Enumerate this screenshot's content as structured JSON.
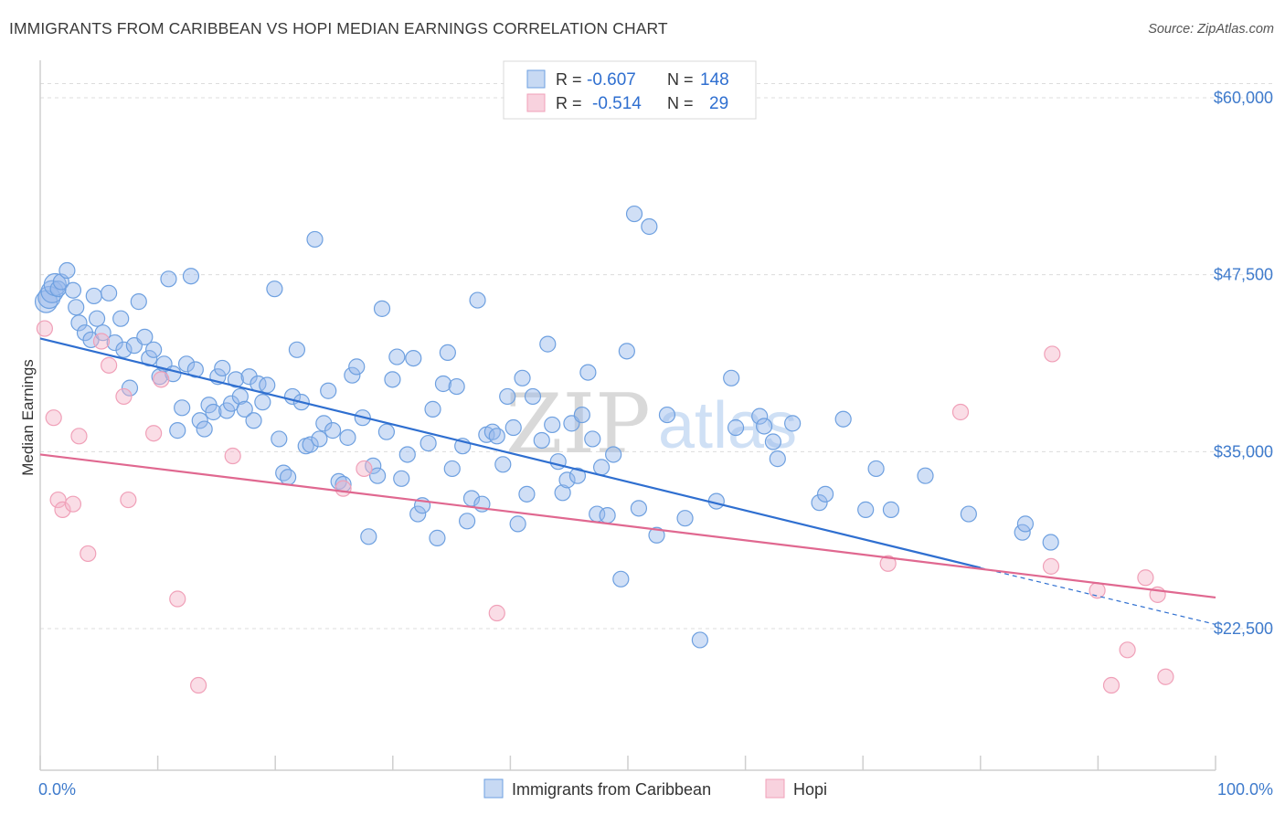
{
  "header": {
    "title": "IMMIGRANTS FROM CARIBBEAN VS HOPI MEDIAN EARNINGS CORRELATION CHART",
    "source": "Source: ZipAtlas.com"
  },
  "watermark": {
    "zip": "ZIP",
    "atlas": "atlas"
  },
  "legend": {
    "rows": [
      {
        "r_label": "R =",
        "r_value": "-0.607",
        "n_label": "N =",
        "n_value": "148",
        "color": "#6ea0e0"
      },
      {
        "r_label": "R =",
        "r_value": "-0.514",
        "n_label": "N =",
        "n_value": "29",
        "color": "#f0a0b8"
      }
    ]
  },
  "bottom_legend": [
    "Immigrants from Caribbean",
    "Hopi"
  ],
  "chart_data": {
    "type": "scatter",
    "title": "IMMIGRANTS FROM CARIBBEAN VS HOPI MEDIAN EARNINGS CORRELATION CHART",
    "xlabel": "",
    "ylabel": "Median Earnings",
    "x_tick_labels": [
      "0.0%",
      "100.0%"
    ],
    "y_tick_labels": [
      "$22,500",
      "$35,000",
      "$47,500",
      "$60,000"
    ],
    "y_ticks": [
      22500,
      35000,
      47500,
      60000
    ],
    "xlim": [
      0,
      100
    ],
    "ylim": [
      12500,
      62000
    ],
    "grid": true,
    "legend_position": "top-center",
    "series": [
      {
        "name": "Immigrants from Caribbean",
        "color": "#6ea0e0",
        "line_color": "#2f6fd0",
        "r": -0.607,
        "n": 148,
        "trend": {
          "x0": 0,
          "y0": 43000,
          "x1": 80,
          "y1": 26800,
          "dashed_to_x": 100,
          "dashed_to_y": 22800
        },
        "points": [
          [
            0.4,
            45.6
          ],
          [
            0.6,
            45.9
          ],
          [
            0.8,
            46.3
          ],
          [
            1.0,
            46.8
          ],
          [
            1.2,
            46.5
          ],
          [
            1.4,
            47.0
          ],
          [
            1.8,
            47.8
          ],
          [
            2.2,
            46.4
          ],
          [
            2.4,
            45.2
          ],
          [
            2.6,
            44.1
          ],
          [
            3.0,
            43.4
          ],
          [
            3.4,
            42.9
          ],
          [
            3.6,
            46.0
          ],
          [
            3.8,
            44.4
          ],
          [
            4.2,
            43.4
          ],
          [
            4.6,
            46.2
          ],
          [
            5.0,
            42.7
          ],
          [
            5.4,
            44.4
          ],
          [
            5.6,
            42.2
          ],
          [
            6.0,
            39.5
          ],
          [
            6.3,
            42.5
          ],
          [
            6.6,
            45.6
          ],
          [
            7.0,
            43.1
          ],
          [
            7.3,
            41.6
          ],
          [
            7.6,
            42.2
          ],
          [
            8.0,
            40.3
          ],
          [
            8.3,
            41.2
          ],
          [
            8.6,
            47.2
          ],
          [
            8.9,
            40.5
          ],
          [
            9.2,
            36.5
          ],
          [
            9.5,
            38.1
          ],
          [
            9.8,
            41.2
          ],
          [
            10.1,
            47.4
          ],
          [
            10.4,
            40.8
          ],
          [
            10.7,
            37.2
          ],
          [
            11.0,
            36.6
          ],
          [
            11.3,
            38.3
          ],
          [
            11.6,
            37.8
          ],
          [
            11.9,
            40.3
          ],
          [
            12.2,
            40.9
          ],
          [
            12.5,
            37.9
          ],
          [
            12.8,
            38.4
          ],
          [
            13.1,
            40.1
          ],
          [
            13.4,
            38.9
          ],
          [
            13.7,
            38.0
          ],
          [
            14.0,
            40.3
          ],
          [
            14.3,
            37.2
          ],
          [
            14.6,
            39.8
          ],
          [
            14.9,
            38.5
          ],
          [
            15.2,
            39.7
          ],
          [
            15.7,
            46.5
          ],
          [
            16.0,
            35.9
          ],
          [
            16.3,
            33.5
          ],
          [
            16.6,
            33.2
          ],
          [
            16.9,
            38.9
          ],
          [
            17.2,
            42.2
          ],
          [
            17.5,
            38.5
          ],
          [
            17.8,
            35.4
          ],
          [
            18.1,
            35.5
          ],
          [
            18.4,
            50.0
          ],
          [
            18.7,
            35.9
          ],
          [
            19.0,
            37.0
          ],
          [
            19.3,
            39.3
          ],
          [
            19.6,
            36.5
          ],
          [
            20.0,
            32.9
          ],
          [
            20.3,
            32.7
          ],
          [
            20.6,
            36.0
          ],
          [
            20.9,
            40.4
          ],
          [
            21.2,
            41.0
          ],
          [
            21.6,
            37.4
          ],
          [
            22.0,
            29.0
          ],
          [
            22.3,
            34.0
          ],
          [
            22.6,
            33.3
          ],
          [
            22.9,
            45.1
          ],
          [
            23.2,
            36.4
          ],
          [
            23.6,
            40.1
          ],
          [
            23.9,
            41.7
          ],
          [
            24.2,
            33.1
          ],
          [
            24.6,
            34.8
          ],
          [
            25.0,
            41.6
          ],
          [
            25.3,
            30.6
          ],
          [
            25.6,
            31.2
          ],
          [
            26.0,
            35.6
          ],
          [
            26.3,
            38.0
          ],
          [
            26.6,
            28.9
          ],
          [
            27.0,
            39.8
          ],
          [
            27.3,
            42.0
          ],
          [
            27.6,
            33.8
          ],
          [
            27.9,
            39.6
          ],
          [
            28.3,
            35.4
          ],
          [
            28.6,
            30.1
          ],
          [
            28.9,
            31.7
          ],
          [
            29.3,
            45.7
          ],
          [
            29.6,
            31.3
          ],
          [
            29.9,
            36.2
          ],
          [
            30.3,
            36.4
          ],
          [
            30.6,
            36.1
          ],
          [
            31.0,
            34.1
          ],
          [
            31.3,
            38.9
          ],
          [
            31.7,
            36.7
          ],
          [
            32.0,
            29.9
          ],
          [
            32.3,
            40.2
          ],
          [
            32.6,
            32.0
          ],
          [
            33.0,
            38.9
          ],
          [
            33.6,
            35.8
          ],
          [
            34.0,
            42.6
          ],
          [
            34.3,
            36.9
          ],
          [
            34.7,
            34.3
          ],
          [
            35.0,
            32.1
          ],
          [
            35.3,
            33.0
          ],
          [
            35.6,
            37.0
          ],
          [
            36.0,
            33.3
          ],
          [
            36.3,
            37.6
          ],
          [
            36.7,
            40.6
          ],
          [
            37.0,
            35.9
          ],
          [
            37.3,
            30.6
          ],
          [
            37.6,
            33.9
          ],
          [
            38.0,
            30.5
          ],
          [
            38.4,
            34.8
          ],
          [
            38.9,
            26.0
          ],
          [
            39.3,
            42.1
          ],
          [
            39.8,
            51.8
          ],
          [
            40.1,
            31.0
          ],
          [
            40.8,
            50.9
          ],
          [
            41.3,
            29.1
          ],
          [
            42.0,
            37.6
          ],
          [
            43.2,
            30.3
          ],
          [
            44.2,
            21.7
          ],
          [
            45.3,
            31.5
          ],
          [
            46.3,
            40.2
          ],
          [
            46.6,
            36.7
          ],
          [
            48.2,
            37.5
          ],
          [
            48.5,
            36.8
          ],
          [
            49.1,
            35.7
          ],
          [
            49.4,
            34.5
          ],
          [
            50.4,
            37.0
          ],
          [
            52.2,
            31.4
          ],
          [
            52.6,
            32.0
          ],
          [
            53.8,
            37.3
          ],
          [
            55.3,
            30.9
          ],
          [
            56.0,
            33.8
          ],
          [
            57.0,
            30.9
          ],
          [
            59.3,
            33.3
          ],
          [
            62.2,
            30.6
          ],
          [
            65.8,
            29.3
          ],
          [
            66.0,
            29.9
          ],
          [
            67.7,
            28.6
          ]
        ]
      },
      {
        "name": "Hopi",
        "color": "#f0a0b8",
        "line_color": "#e06890",
        "r": -0.514,
        "n": 29,
        "trend": {
          "x0": 0,
          "y0": 34800,
          "x1": 100,
          "y1": 24700
        },
        "points": [
          [
            0.3,
            43.7
          ],
          [
            0.9,
            37.4
          ],
          [
            1.2,
            31.6
          ],
          [
            1.5,
            30.9
          ],
          [
            2.2,
            31.3
          ],
          [
            2.6,
            36.1
          ],
          [
            3.2,
            27.8
          ],
          [
            4.1,
            42.8
          ],
          [
            4.6,
            41.1
          ],
          [
            5.6,
            38.9
          ],
          [
            5.9,
            31.6
          ],
          [
            7.6,
            36.3
          ],
          [
            8.1,
            40.1
          ],
          [
            9.2,
            24.6
          ],
          [
            10.6,
            18.5
          ],
          [
            12.9,
            34.7
          ],
          [
            20.3,
            32.4
          ],
          [
            21.7,
            33.8
          ],
          [
            30.6,
            23.6
          ],
          [
            56.8,
            27.1
          ],
          [
            67.8,
            41.9
          ],
          [
            94.3,
            37.8
          ],
          [
            98.8,
            26.9
          ],
          [
            101.1,
            25.2
          ],
          [
            101.8,
            18.5
          ],
          [
            102.6,
            21.0
          ],
          [
            103.5,
            26.1
          ],
          [
            104.1,
            24.9
          ],
          [
            104.5,
            19.1
          ]
        ]
      }
    ]
  }
}
